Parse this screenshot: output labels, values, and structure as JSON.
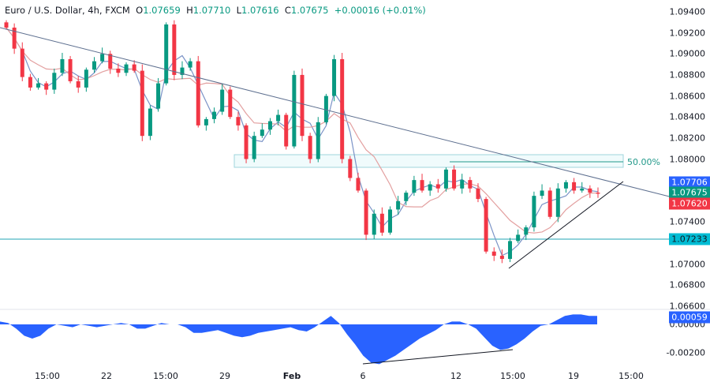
{
  "legend": {
    "symbol": "Euro / U.S. Dollar, 4h, FXCM",
    "open": "1.07659",
    "high": "1.07710",
    "low": "1.07616",
    "close": "1.07675",
    "change": "+0.00016 (+0.01%)"
  },
  "colors": {
    "up": "#089981",
    "down": "#f23645",
    "ma_fast": "#7b93c7",
    "ma_slow": "#e3a0a0",
    "trend": "#5d6f8f",
    "support_line": "#22a5b5",
    "osc": "#2962ff"
  },
  "chart_data": {
    "type": "candlestick",
    "x_ticks": [
      "15:00",
      "22",
      "15:00",
      "29",
      "Feb",
      "6",
      "12",
      "15:00",
      "19",
      "15:00"
    ],
    "y_ticks": [
      "1.09400",
      "1.09200",
      "1.09000",
      "1.08800",
      "1.08600",
      "1.08400",
      "1.08200",
      "1.08000",
      "1.07400",
      "1.07000",
      "1.06800",
      "1.06600"
    ],
    "ylim": [
      1.066,
      1.094
    ],
    "closes": [
      1.0925,
      1.0905,
      1.0878,
      1.0868,
      1.0872,
      1.0866,
      1.0882,
      1.0895,
      1.0874,
      1.0868,
      1.0885,
      1.0893,
      1.09,
      1.0886,
      1.0882,
      1.089,
      1.0884,
      1.0822,
      1.0848,
      1.0872,
      1.0928,
      1.088,
      1.0887,
      1.0893,
      1.0832,
      1.0838,
      1.0845,
      1.0866,
      1.084,
      1.0832,
      1.08,
      1.0822,
      1.0828,
      1.0836,
      1.0842,
      1.0812,
      1.088,
      1.0822,
      1.08,
      1.0835,
      1.086,
      1.0895,
      1.08,
      1.0782,
      1.077,
      1.0728,
      1.0748,
      1.073,
      1.0752,
      1.076,
      1.0768,
      1.078,
      1.077,
      1.0776,
      1.0772,
      1.079,
      1.0772,
      1.078,
      1.0772,
      1.0762,
      1.0712,
      1.0708,
      1.0705,
      1.0722,
      1.0728,
      1.0735,
      1.0765,
      1.077,
      1.0745,
      1.0772,
      1.0778,
      1.077,
      1.0772,
      1.0768,
      1.0767
    ],
    "price_tags": [
      {
        "label": "1.07706",
        "color": "#2962ff"
      },
      {
        "label": "1.07675",
        "color": "#089981"
      },
      {
        "label": "1.07620",
        "color": "#f23645"
      },
      {
        "label": "1.07233",
        "color": "#00bcd4"
      }
    ],
    "fib_label": "50.00%",
    "oscillator": {
      "ticks": [
        "0.00000",
        "-0.00200"
      ],
      "last_tag": "0.00059",
      "values": [
        0.0002,
        0.0001,
        -0.0003,
        -0.0008,
        -0.001,
        -0.0008,
        -0.0003,
        0.0,
        -0.0001,
        -0.0002,
        0.0,
        -0.0001,
        -0.0002,
        -0.0001,
        0.0,
        0.0001,
        0.0,
        -0.0003,
        -0.0003,
        -0.0001,
        0.0001,
        0.0,
        0.0,
        -0.0002,
        -0.0006,
        -0.0006,
        -0.0005,
        -0.0004,
        -0.0006,
        -0.0008,
        -0.0009,
        -0.0008,
        -0.0006,
        -0.0005,
        -0.0004,
        -0.0003,
        -0.0002,
        -0.0004,
        -0.0005,
        -0.0002,
        0.0002,
        0.0006,
        0.0001,
        -0.0007,
        -0.0014,
        -0.0022,
        -0.0027,
        -0.0028,
        -0.0025,
        -0.0022,
        -0.0018,
        -0.0014,
        -0.001,
        -0.0007,
        -0.0004,
        0.0,
        0.0002,
        0.0002,
        0.0,
        -0.0003,
        -0.0009,
        -0.0015,
        -0.0018,
        -0.0017,
        -0.0014,
        -0.001,
        -0.0005,
        -0.0001,
        0.0,
        0.0003,
        0.0006,
        0.0007,
        0.0007,
        0.0006,
        0.0006
      ]
    }
  }
}
